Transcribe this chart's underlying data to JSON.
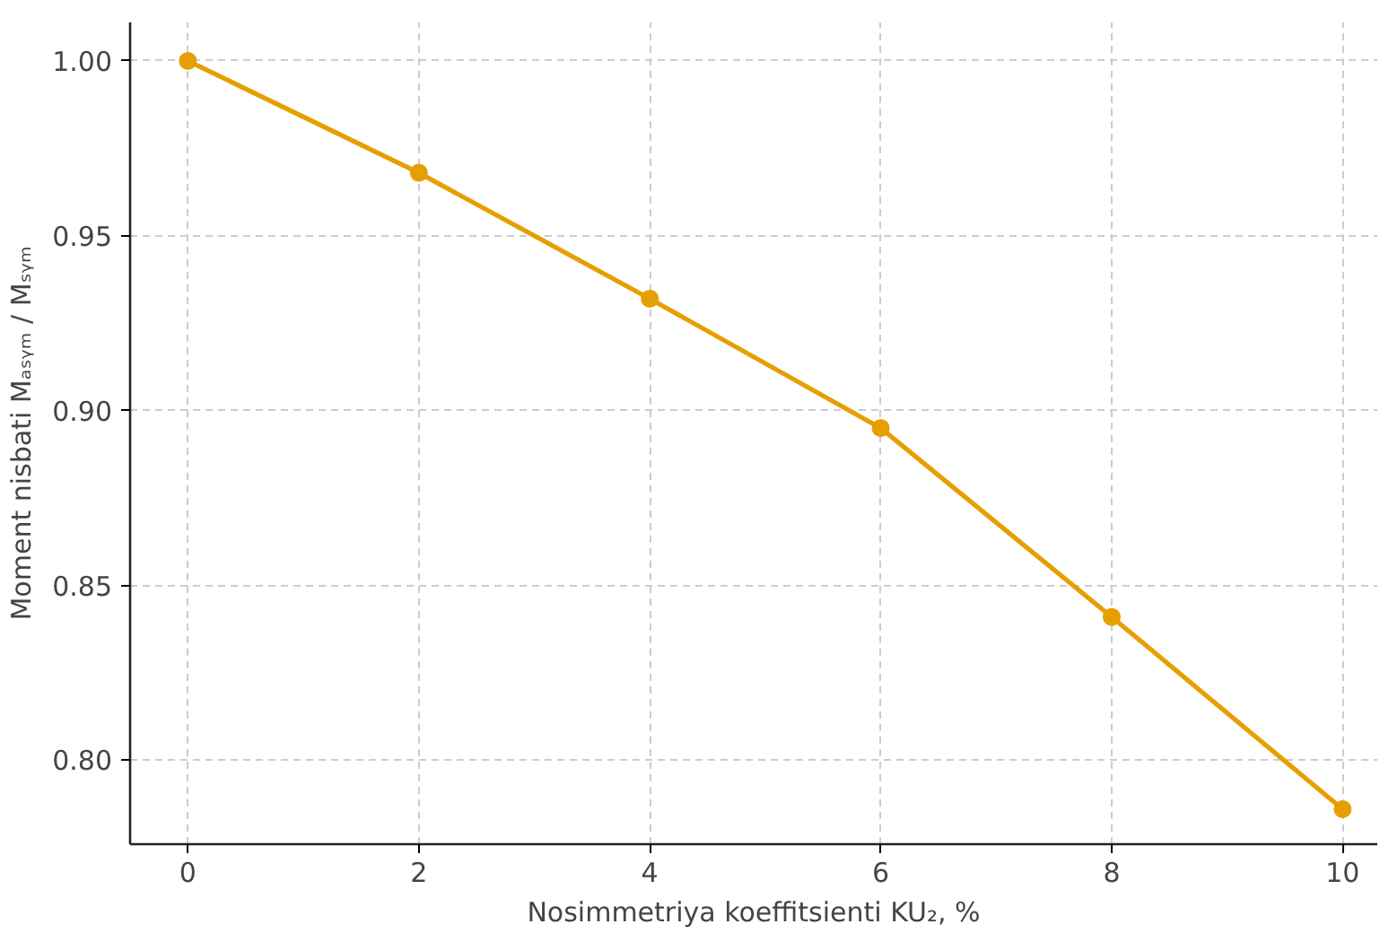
{
  "chart_data": {
    "type": "line",
    "xlabel": "Nosimmetriya koeffitsienti KU₂, %",
    "ylabel": "Moment nisbati Mₐₛᵧₘ / Mₛᵧₘ",
    "x": [
      0,
      2,
      4,
      6,
      8,
      10
    ],
    "series": [
      {
        "color": "#e69f00",
        "values": [
          1.0,
          0.968,
          0.932,
          0.895,
          0.841,
          0.786
        ]
      }
    ],
    "xlim": [
      -0.5,
      10.3
    ],
    "ylim": [
      0.776,
      1.011
    ],
    "xticks": [
      0,
      2,
      4,
      6,
      8,
      10
    ],
    "yticks": [
      {
        "value": 0.8,
        "label": "0.80"
      },
      {
        "value": 0.85,
        "label": "0.85"
      },
      {
        "value": 0.9,
        "label": "0.90"
      },
      {
        "value": 0.95,
        "label": "0.95"
      },
      {
        "value": 1.0,
        "label": "1.00"
      }
    ],
    "grid": true,
    "marker": "circle",
    "line_style": "solid"
  }
}
